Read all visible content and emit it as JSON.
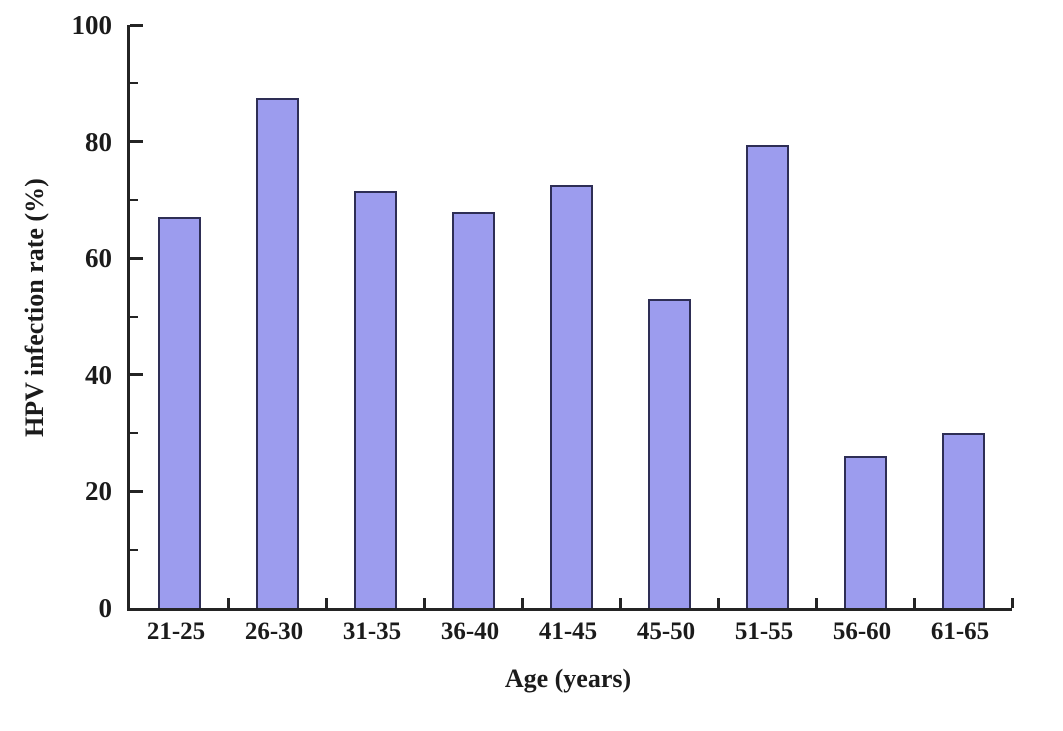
{
  "chart_data": {
    "type": "bar",
    "title": "",
    "xlabel": "Age (years)",
    "ylabel": "HPV infection rate (%)",
    "categories": [
      "21-25",
      "26-30",
      "31-35",
      "36-40",
      "41-45",
      "45-50",
      "51-55",
      "56-60",
      "61-65"
    ],
    "values": [
      67,
      87.5,
      71.5,
      68,
      72.5,
      53,
      79.5,
      26,
      30
    ],
    "ylim": [
      0,
      100
    ],
    "ytick_major": [
      0,
      20,
      40,
      60,
      80,
      100
    ],
    "ytick_minor": [
      10,
      30,
      50,
      70,
      90
    ],
    "grid": "off",
    "legend": "none",
    "bar_fill": "#9c9cee",
    "bar_border": "#2e2e55",
    "axis_color": "#242424"
  }
}
